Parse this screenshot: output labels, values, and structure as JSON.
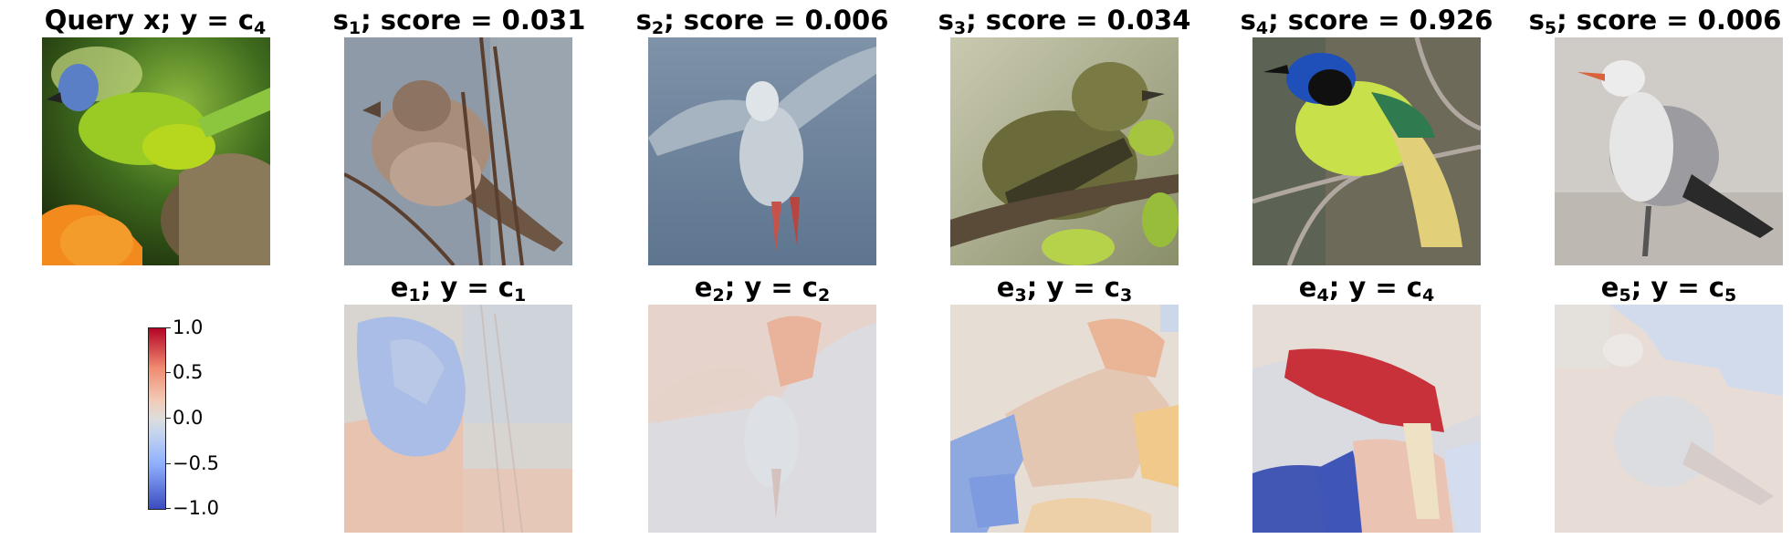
{
  "panels": {
    "query": {
      "title": "Query x; y = c",
      "sub": "4"
    },
    "similar": [
      {
        "s": "s",
        "sub": "1",
        "score_text": "; score = 0.031",
        "score": 0.031
      },
      {
        "s": "s",
        "sub": "2",
        "score_text": "; score = 0.006",
        "score": 0.006
      },
      {
        "s": "s",
        "sub": "3",
        "score_text": "; score = 0.034",
        "score": 0.034
      },
      {
        "s": "s",
        "sub": "4",
        "score_text": "; score = 0.926",
        "score": 0.926
      },
      {
        "s": "s",
        "sub": "5",
        "score_text": "; score = 0.006",
        "score": 0.006
      }
    ],
    "explanations": [
      {
        "e": "e",
        "esub": "1",
        "mid": "; y = c",
        "csub": "1"
      },
      {
        "e": "e",
        "esub": "2",
        "mid": "; y = c",
        "csub": "2"
      },
      {
        "e": "e",
        "esub": "3",
        "mid": "; y = c",
        "csub": "3"
      },
      {
        "e": "e",
        "esub": "4",
        "mid": "; y = c",
        "csub": "4"
      },
      {
        "e": "e",
        "esub": "5",
        "mid": "; y = c",
        "csub": "5"
      }
    ]
  },
  "colorbar": {
    "ticks": [
      "1.0",
      "0.5",
      "0.0",
      "−0.5",
      "−1.0"
    ],
    "colors": {
      "max": "#b40426",
      "mid": "#dddddd",
      "min": "#3b4cc0"
    }
  }
}
